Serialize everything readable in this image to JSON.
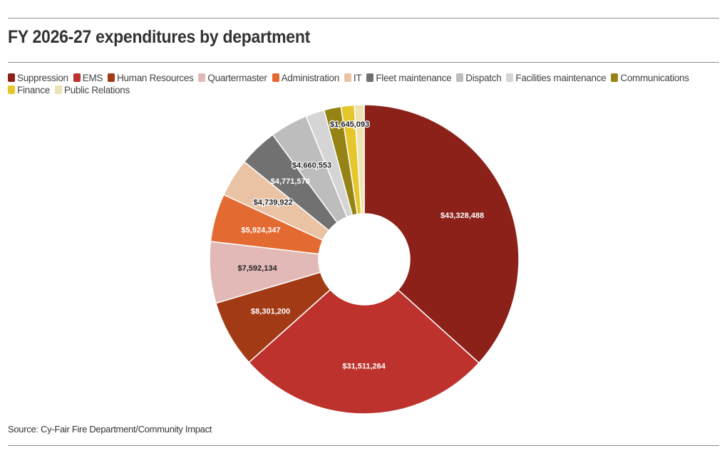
{
  "title": "FY 2026-27 expenditures by department",
  "source": "Source: Cy-Fair Fire Department/Community Impact",
  "chart_data": {
    "type": "pie",
    "donut": true,
    "title": "FY 2026-27 expenditures by department",
    "legend_position": "top",
    "series": [
      {
        "name": "Suppression",
        "value": 43328488,
        "color": "#8b2118",
        "label": "$43,328,488",
        "label_color": "#ffffff"
      },
      {
        "name": "EMS",
        "value": 31511264,
        "color": "#bd322c",
        "label": "$31,511,264",
        "label_color": "#ffffff"
      },
      {
        "name": "Human Resources",
        "value": 8301200,
        "color": "#a23a16",
        "label": "$8,301,200",
        "label_color": "#ffffff"
      },
      {
        "name": "Quartermaster",
        "value": 7592134,
        "color": "#e2b9b6",
        "label": "$7,592,134",
        "label_color": "#222222"
      },
      {
        "name": "Administration",
        "value": 5924347,
        "color": "#e36a31",
        "label": "$5,924,347",
        "label_color": "#ffffff"
      },
      {
        "name": "IT",
        "value": 4739922,
        "color": "#eac2a4",
        "label": "$4,739,922",
        "label_color": "#222222"
      },
      {
        "name": "Fleet maintenance",
        "value": 4771570,
        "color": "#717171",
        "label": "$4,771,570",
        "label_color": "#ffffff"
      },
      {
        "name": "Dispatch",
        "value": 4660553,
        "color": "#bdbdbd",
        "label": "$4,660,553",
        "label_color": "#222222"
      },
      {
        "name": "Facilities maintenance",
        "value": 2300000,
        "color": "#d5d5d5",
        "label": "",
        "label_color": "#222222"
      },
      {
        "name": "Communications",
        "value": 2100000,
        "color": "#958316",
        "label": "",
        "label_color": "#222222"
      },
      {
        "name": "Finance",
        "value": 1645093,
        "color": "#e6c72b",
        "label": "$1,645,093",
        "label_color": "#222222"
      },
      {
        "name": "Public Relations",
        "value": 1200000,
        "color": "#ede2b1",
        "label": "",
        "label_color": "#222222"
      }
    ]
  }
}
